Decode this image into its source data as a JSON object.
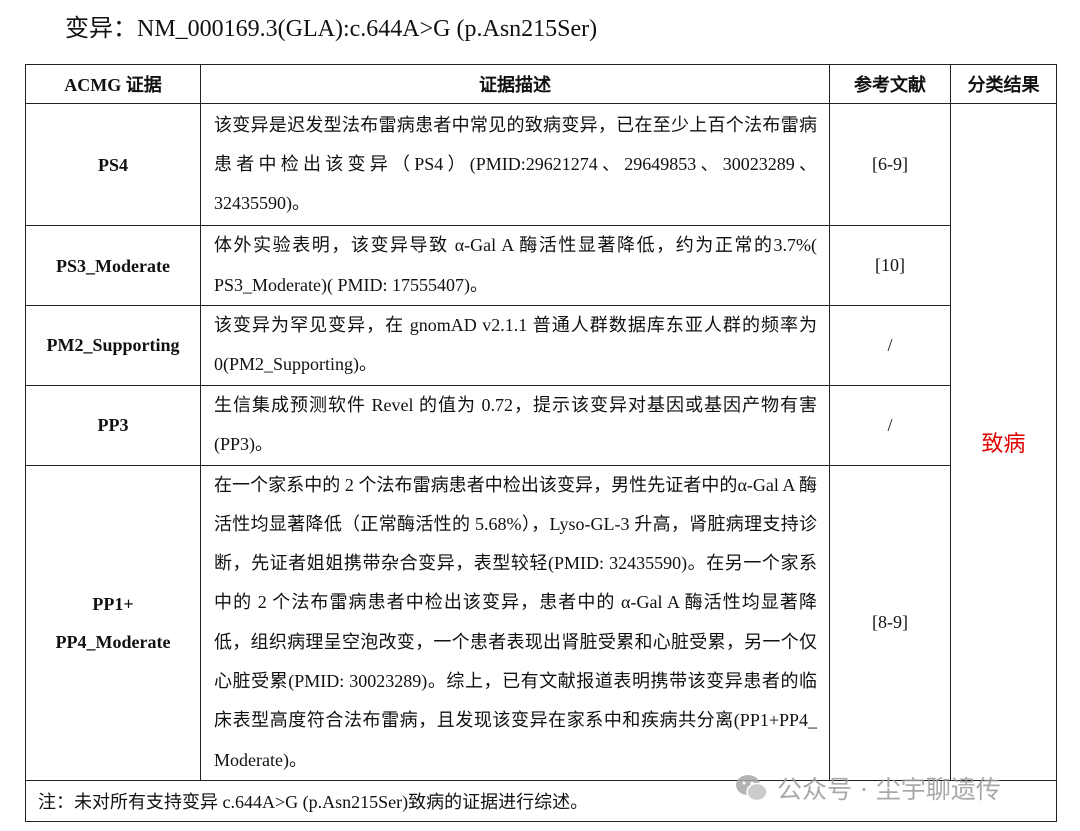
{
  "title": "变异：NM_000169.3(GLA):c.644A>G (p.Asn215Ser)",
  "table": {
    "headers": [
      "ACMG 证据",
      "证据描述",
      "参考文献",
      "分类结果"
    ],
    "rows": [
      {
        "evidence": "PS4",
        "description": "该变异是迟发型法布雷病患者中常见的致病变异，已在至少上百个法布雷病患者中检出该变异（PS4）(PMID:29621274、29649853、30023289、32435590)。",
        "ref": "[6-9]"
      },
      {
        "evidence": "PS3_Moderate",
        "description": "体外实验表明，该变异导致 α-Gal A 酶活性显著降低，约为正常的3.7%( PS3_Moderate)( PMID: 17555407)。",
        "ref": "[10]"
      },
      {
        "evidence": "PM2_Supporting",
        "description": "该变异为罕见变异，在 gnomAD v2.1.1 普通人群数据库东亚人群的频率为 0(PM2_Supporting)。",
        "ref": "/"
      },
      {
        "evidence": "PP3",
        "description": "生信集成预测软件 Revel 的值为 0.72，提示该变异对基因或基因产物有害(PP3)。",
        "ref": "/"
      },
      {
        "evidence_line1": "PP1+",
        "evidence_line2": "PP4_Moderate",
        "description": "在一个家系中的 2 个法布雷病患者中检出该变异，男性先证者中的α-Gal A 酶活性均显著降低（正常酶活性的 5.68%），Lyso-GL-3 升高，肾脏病理支持诊断，先证者姐姐携带杂合变异，表型较轻(PMID: 32435590)。在另一个家系中的 2 个法布雷病患者中检出该变异，患者中的 α-Gal A 酶活性均显著降低，组织病理呈空泡改变，一个患者表现出肾脏受累和心脏受累，另一个仅心脏受累(PMID: 30023289)。综上，已有文献报道表明携带该变异患者的临床表型高度符合法布雷病，且发现该变异在家系中和疾病共分离(PP1+PP4_ Moderate)。",
        "ref": "[8-9]"
      }
    ],
    "classification": "致病",
    "classification_color": "#e00000",
    "note": "注：未对所有支持变异 c.644A>G (p.Asn215Ser)致病的证据进行综述。"
  },
  "watermark": {
    "icon": "wechat-icon",
    "text": "公众号 · 尘宇聊遗传"
  }
}
